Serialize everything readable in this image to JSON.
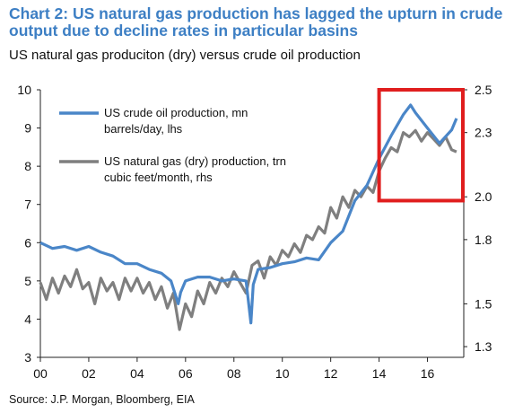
{
  "title": "Chart 2: US natural gas production has lagged the upturn in crude output due to decline rates in particular basins",
  "subtitle": "US natural gas produciton (dry) versus crude oil production",
  "source": "Source: J.P. Morgan, Bloomberg, EIA",
  "colors": {
    "oil": "#4a86c8",
    "gas": "#7f7f7f",
    "highlight": "#e01e1e",
    "title": "#3d7fc4"
  },
  "chart_data": {
    "type": "line",
    "title": "",
    "grid": false,
    "legend_position": "top-left",
    "x_ticks": [
      "00",
      "02",
      "04",
      "06",
      "08",
      "10",
      "12",
      "14",
      "16"
    ],
    "xlim": [
      2000,
      2017.5
    ],
    "y_left": {
      "ticks": [
        "3",
        "4",
        "5",
        "6",
        "7",
        "8",
        "9",
        "10"
      ],
      "lim": [
        3,
        10
      ],
      "label": ""
    },
    "y_right": {
      "ticks": [
        "1.3",
        "1.5",
        "1.8",
        "2.0",
        "2.3",
        "2.5"
      ],
      "lim": [
        1.25,
        2.5
      ],
      "label": ""
    },
    "highlight_box": {
      "x": [
        2014.0,
        2017.8
      ],
      "y_left": [
        7.1,
        10.0
      ]
    },
    "series": [
      {
        "name": "US crude oil production, mn barrels/day, lhs",
        "axis": "left",
        "x": [
          2000.0,
          2000.5,
          2001.0,
          2001.5,
          2002.0,
          2002.5,
          2003.0,
          2003.5,
          2004.0,
          2004.5,
          2005.0,
          2005.4,
          2005.7,
          2005.8,
          2006.0,
          2006.5,
          2007.0,
          2007.5,
          2008.0,
          2008.5,
          2008.7,
          2008.8,
          2009.0,
          2009.5,
          2010.0,
          2010.5,
          2011.0,
          2011.5,
          2012.0,
          2012.5,
          2013.0,
          2013.5,
          2014.0,
          2014.5,
          2015.0,
          2015.3,
          2015.5,
          2016.0,
          2016.5,
          2017.0,
          2017.2
        ],
        "values": [
          6.0,
          5.85,
          5.9,
          5.8,
          5.9,
          5.75,
          5.65,
          5.45,
          5.45,
          5.3,
          5.2,
          5.0,
          4.4,
          4.7,
          5.0,
          5.1,
          5.1,
          5.0,
          5.05,
          5.0,
          3.9,
          4.9,
          5.3,
          5.35,
          5.45,
          5.5,
          5.6,
          5.55,
          6.0,
          6.3,
          7.1,
          7.5,
          8.2,
          8.8,
          9.35,
          9.6,
          9.4,
          9.0,
          8.6,
          8.95,
          9.25
        ]
      },
      {
        "name": "US natural gas (dry) production, trn cubic feet/month, rhs",
        "axis": "right",
        "x": [
          2000.0,
          2000.25,
          2000.5,
          2000.75,
          2001.0,
          2001.25,
          2001.5,
          2001.75,
          2002.0,
          2002.25,
          2002.5,
          2002.75,
          2003.0,
          2003.25,
          2003.5,
          2003.75,
          2004.0,
          2004.25,
          2004.5,
          2004.75,
          2005.0,
          2005.25,
          2005.5,
          2005.75,
          2006.0,
          2006.25,
          2006.5,
          2006.75,
          2007.0,
          2007.25,
          2007.5,
          2007.75,
          2008.0,
          2008.25,
          2008.5,
          2008.75,
          2009.0,
          2009.25,
          2009.5,
          2009.75,
          2010.0,
          2010.25,
          2010.5,
          2010.75,
          2011.0,
          2011.25,
          2011.5,
          2011.75,
          2012.0,
          2012.25,
          2012.5,
          2012.75,
          2013.0,
          2013.25,
          2013.5,
          2013.75,
          2014.0,
          2014.25,
          2014.5,
          2014.75,
          2015.0,
          2015.25,
          2015.5,
          2015.75,
          2016.0,
          2016.25,
          2016.5,
          2016.75,
          2017.0,
          2017.2
        ],
        "values": [
          1.6,
          1.52,
          1.62,
          1.55,
          1.63,
          1.58,
          1.66,
          1.57,
          1.6,
          1.5,
          1.62,
          1.56,
          1.6,
          1.52,
          1.62,
          1.56,
          1.62,
          1.55,
          1.6,
          1.52,
          1.58,
          1.48,
          1.55,
          1.38,
          1.5,
          1.44,
          1.56,
          1.5,
          1.6,
          1.55,
          1.62,
          1.58,
          1.65,
          1.6,
          1.55,
          1.68,
          1.7,
          1.62,
          1.72,
          1.68,
          1.75,
          1.72,
          1.78,
          1.74,
          1.82,
          1.8,
          1.86,
          1.83,
          1.95,
          1.9,
          2.0,
          1.95,
          2.03,
          2.0,
          2.05,
          2.02,
          2.12,
          2.18,
          2.23,
          2.21,
          2.3,
          2.28,
          2.31,
          2.26,
          2.3,
          2.27,
          2.24,
          2.28,
          2.22,
          2.21
        ]
      }
    ]
  }
}
